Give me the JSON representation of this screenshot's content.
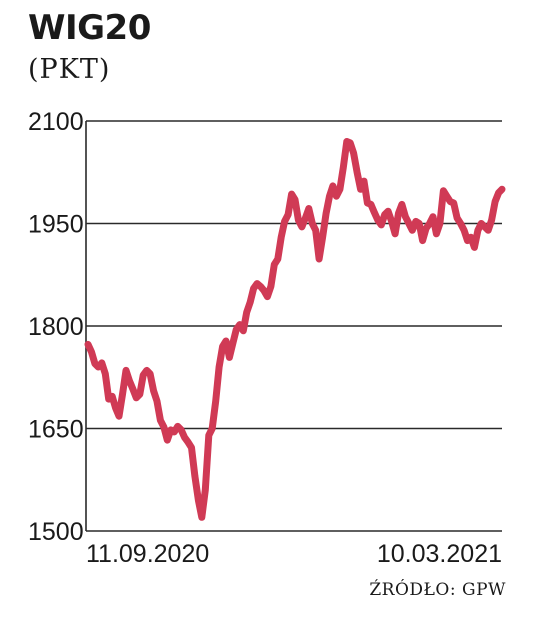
{
  "chart_data": {
    "type": "line",
    "title": "WIG20",
    "ylabel": "(PKT)",
    "source": "ŹRÓDŁO: GPW",
    "ylim": [
      1500,
      2100
    ],
    "yticks": [
      "2100",
      "1950",
      "1800",
      "1650",
      "1500"
    ],
    "ytick_values": [
      2100,
      1950,
      1800,
      1650,
      1500
    ],
    "xtick_labels": [
      "11.09.2020",
      "10.03.2021"
    ],
    "line_color": "#d03a55",
    "grid": true,
    "series": [
      {
        "values": [
          1773,
          1762,
          1745,
          1740,
          1746,
          1730,
          1693,
          1697,
          1680,
          1668,
          1700,
          1735,
          1720,
          1708,
          1695,
          1700,
          1728,
          1735,
          1730,
          1705,
          1690,
          1662,
          1652,
          1633,
          1648,
          1645,
          1653,
          1648,
          1637,
          1630,
          1622,
          1580,
          1545,
          1520,
          1560,
          1640,
          1650,
          1690,
          1740,
          1770,
          1778,
          1754,
          1775,
          1795,
          1802,
          1793,
          1820,
          1835,
          1855,
          1862,
          1858,
          1852,
          1843,
          1858,
          1890,
          1898,
          1930,
          1953,
          1963,
          1993,
          1985,
          1955,
          1945,
          1958,
          1972,
          1950,
          1940,
          1898,
          1930,
          1965,
          1990,
          2005,
          1990,
          2000,
          2032,
          2070,
          2068,
          2053,
          2025,
          2000,
          2012,
          1980,
          1978,
          1966,
          1955,
          1948,
          1963,
          1968,
          1953,
          1935,
          1965,
          1978,
          1960,
          1950,
          1940,
          1953,
          1950,
          1925,
          1943,
          1950,
          1960,
          1935,
          1950,
          1998,
          1990,
          1982,
          1980,
          1958,
          1950,
          1940,
          1925,
          1930,
          1915,
          1940,
          1950,
          1945,
          1940,
          1955,
          1982,
          1995,
          2000
        ]
      }
    ]
  }
}
